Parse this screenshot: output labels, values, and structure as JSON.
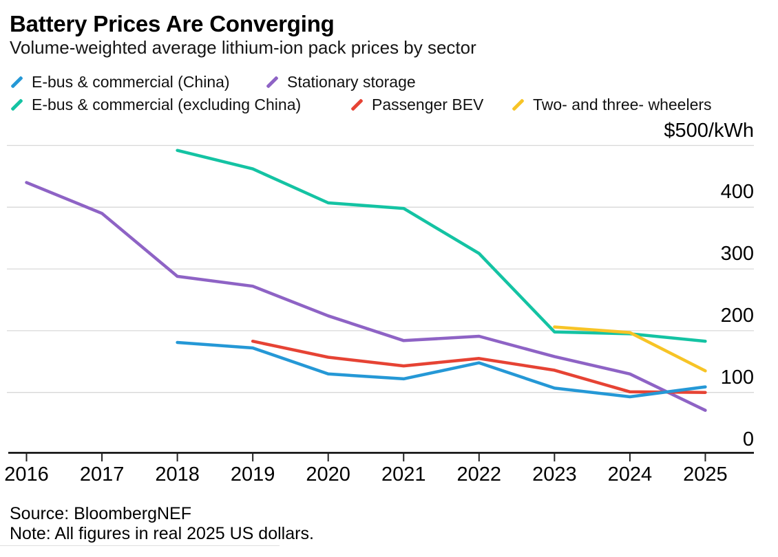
{
  "header": {
    "title": "Battery Prices Are Converging",
    "subtitle": "Volume-weighted average lithium-ion pack prices by sector"
  },
  "legend": {
    "items": [
      {
        "label": "E-bus & commercial (China)",
        "color": "#2598d6"
      },
      {
        "label": "Stationary storage",
        "color": "#8e63c5"
      },
      {
        "label": "E-bus & commercial (excluding China)",
        "color": "#14c3a3"
      },
      {
        "label": "Passenger BEV",
        "color": "#e64334"
      },
      {
        "label": "Two- and three- wheelers",
        "color": "#f7c426"
      }
    ]
  },
  "footer": {
    "source": "Source: BloombergNEF",
    "note": "Note: All figures in real 2025 US dollars."
  },
  "chart_data": {
    "type": "line",
    "title": "Battery Prices Are Converging",
    "subtitle": "Volume-weighted average lithium-ion pack prices by sector",
    "xlabel": "",
    "ylabel": "$/kWh",
    "categories": [
      "2016",
      "2017",
      "2018",
      "2019",
      "2020",
      "2021",
      "2022",
      "2023",
      "2024",
      "2025"
    ],
    "series": [
      {
        "name": "E-bus & commercial (China)",
        "color": "#2598d6",
        "values": [
          null,
          null,
          181,
          172,
          130,
          122,
          148,
          107,
          93,
          109
        ]
      },
      {
        "name": "Stationary storage",
        "color": "#8e63c5",
        "values": [
          440,
          390,
          288,
          272,
          224,
          184,
          191,
          158,
          130,
          71
        ]
      },
      {
        "name": "E-bus & commercial (excluding China)",
        "color": "#14c3a3",
        "values": [
          null,
          null,
          492,
          462,
          407,
          398,
          325,
          198,
          195,
          183
        ]
      },
      {
        "name": "Passenger BEV",
        "color": "#e64334",
        "values": [
          null,
          null,
          null,
          183,
          157,
          143,
          155,
          136,
          101,
          100
        ]
      },
      {
        "name": "Two- and three- wheelers",
        "color": "#f7c426",
        "values": [
          null,
          null,
          null,
          null,
          null,
          null,
          null,
          206,
          197,
          135
        ]
      }
    ],
    "y_axis": {
      "unit_tick_label": "$500/kWh",
      "ticks": [
        500,
        400,
        300,
        200,
        100,
        0
      ],
      "range": [
        0,
        500
      ],
      "grid": true
    },
    "legend_position": "top",
    "source": "Source: BloombergNEF",
    "note": "Note: All figures in real 2025 US dollars."
  },
  "style": {
    "gridline_color": "#d8d8d8",
    "axis_color": "#000000",
    "tick_color": "#222222"
  }
}
